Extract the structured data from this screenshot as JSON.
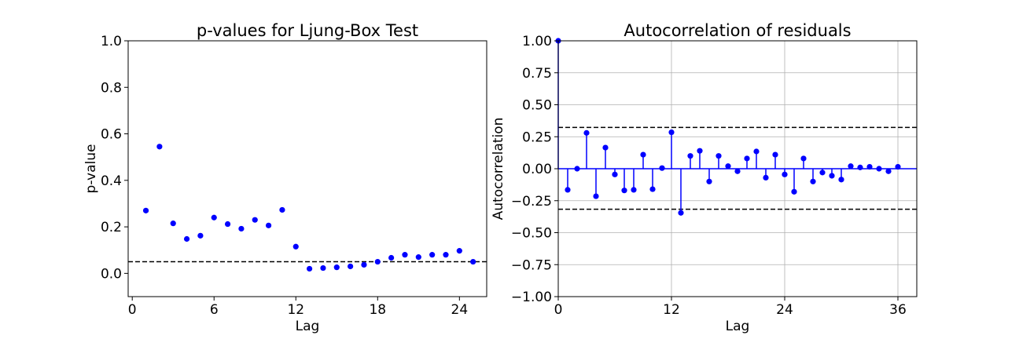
{
  "chart_data": [
    {
      "type": "scatter",
      "title": "p-values for Ljung-Box Test",
      "xlabel": "Lag",
      "ylabel": "p-value",
      "xlim": [
        -0.3,
        26
      ],
      "ylim": [
        -0.1,
        1.0
      ],
      "xticks": [
        0,
        6,
        12,
        18,
        24
      ],
      "yticks": [
        0.0,
        0.2,
        0.4,
        0.6,
        0.8,
        1.0
      ],
      "ytick_labels": [
        "0.0",
        "0.2",
        "0.4",
        "0.6",
        "0.8",
        "1.0"
      ],
      "grid": false,
      "marker_color": "#0000ff",
      "reference_line": 0.05,
      "x": [
        1,
        2,
        3,
        4,
        5,
        6,
        7,
        8,
        9,
        10,
        11,
        12,
        13,
        14,
        15,
        16,
        17,
        18,
        19,
        20,
        21,
        22,
        23,
        24,
        25
      ],
      "y": [
        0.27,
        0.545,
        0.215,
        0.148,
        0.162,
        0.24,
        0.212,
        0.192,
        0.23,
        0.206,
        0.273,
        0.115,
        0.02,
        0.023,
        0.026,
        0.03,
        0.037,
        0.05,
        0.067,
        0.08,
        0.07,
        0.08,
        0.08,
        0.097,
        0.05
      ]
    },
    {
      "type": "stem",
      "title": "Autocorrelation of residuals",
      "xlabel": "Lag",
      "ylabel": "Autocorrelation",
      "xlim": [
        0,
        38
      ],
      "ylim": [
        -1.0,
        1.0
      ],
      "xticks": [
        0,
        12,
        24,
        36
      ],
      "yticks": [
        1.0,
        0.75,
        0.5,
        0.25,
        0.0,
        -0.25,
        -0.5,
        -0.75,
        -1.0
      ],
      "ytick_labels": [
        "1.00",
        "0.75",
        "0.50",
        "0.25",
        "0.00",
        "−0.25",
        "−0.50",
        "−0.75",
        "−1.00"
      ],
      "grid": true,
      "marker_color": "#0000ff",
      "confidence_bounds": [
        0.323,
        -0.317
      ],
      "x": [
        0,
        1,
        2,
        3,
        4,
        5,
        6,
        7,
        8,
        9,
        10,
        11,
        12,
        13,
        14,
        15,
        16,
        17,
        18,
        19,
        20,
        21,
        22,
        23,
        24,
        25,
        26,
        27,
        28,
        29,
        30,
        31,
        32,
        33,
        34,
        35,
        36
      ],
      "y": [
        1.0,
        -0.165,
        0.0,
        0.28,
        -0.215,
        0.165,
        -0.045,
        -0.17,
        -0.165,
        0.11,
        -0.16,
        0.005,
        0.285,
        -0.345,
        0.1,
        0.14,
        -0.1,
        0.1,
        0.02,
        -0.02,
        0.08,
        0.135,
        -0.07,
        0.11,
        -0.045,
        -0.18,
        0.08,
        -0.1,
        -0.03,
        -0.055,
        -0.085,
        0.02,
        0.01,
        0.015,
        0.0,
        -0.02,
        0.015
      ]
    }
  ]
}
